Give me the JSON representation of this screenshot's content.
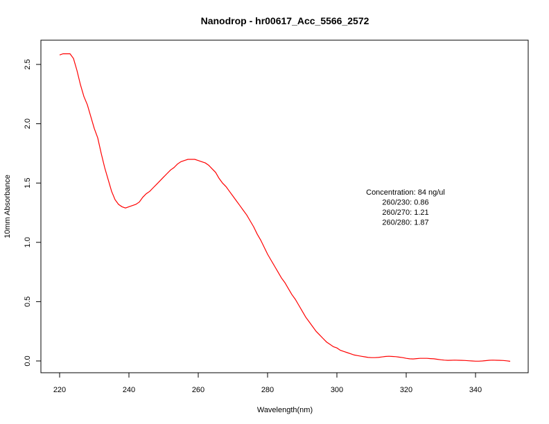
{
  "chart_data": {
    "type": "line",
    "title": "Nanodrop - hr00617_Acc_5566_2572",
    "xlabel": "Wavelength(nm)",
    "ylabel": "10mm Absorbance",
    "xlim": [
      220,
      350
    ],
    "ylim": [
      0.0,
      2.6
    ],
    "x_ticks": [
      "220",
      "240",
      "260",
      "280",
      "300",
      "320",
      "340"
    ],
    "y_ticks": [
      "0.0",
      "0.5",
      "1.0",
      "1.5",
      "2.0",
      "2.5"
    ],
    "grid": false,
    "line_color": "#ff0000",
    "annotations": [
      "Concentration: 84 ng/ul",
      "260/230: 0.86",
      "260/270: 1.21",
      "260/280: 1.87"
    ],
    "series": [
      {
        "x": [
          220,
          221,
          222,
          223,
          224,
          225,
          226,
          227,
          228,
          229,
          230,
          231,
          232,
          233,
          234,
          235,
          236,
          237,
          238,
          239,
          240,
          241,
          242,
          243,
          244,
          245,
          246,
          247,
          248,
          249,
          250,
          251,
          252,
          253,
          254,
          255,
          256,
          257,
          258,
          259,
          260,
          261,
          262,
          263,
          264,
          265,
          266,
          267,
          268,
          269,
          270,
          271,
          272,
          273,
          274,
          275,
          276,
          277,
          278,
          279,
          280,
          281,
          282,
          283,
          284,
          285,
          286,
          287,
          288,
          289,
          290,
          291,
          292,
          293,
          294,
          295,
          296,
          297,
          298,
          299,
          300,
          301,
          302,
          303,
          304,
          305,
          306,
          307,
          308,
          309,
          310,
          311,
          312,
          313,
          314,
          315,
          316,
          317,
          318,
          319,
          320,
          321,
          322,
          323,
          324,
          325,
          326,
          327,
          328,
          329,
          330,
          331,
          332,
          333,
          334,
          335,
          336,
          337,
          338,
          339,
          340,
          341,
          342,
          343,
          344,
          345,
          346,
          347,
          348,
          349,
          350
        ],
        "values": [
          2.58,
          2.59,
          2.59,
          2.59,
          2.55,
          2.45,
          2.33,
          2.23,
          2.16,
          2.06,
          1.96,
          1.88,
          1.75,
          1.63,
          1.53,
          1.43,
          1.36,
          1.32,
          1.3,
          1.29,
          1.3,
          1.31,
          1.32,
          1.34,
          1.38,
          1.41,
          1.43,
          1.46,
          1.49,
          1.52,
          1.55,
          1.58,
          1.61,
          1.63,
          1.66,
          1.68,
          1.69,
          1.7,
          1.7,
          1.7,
          1.69,
          1.68,
          1.67,
          1.65,
          1.62,
          1.59,
          1.54,
          1.5,
          1.47,
          1.43,
          1.39,
          1.35,
          1.31,
          1.27,
          1.23,
          1.18,
          1.13,
          1.07,
          1.02,
          0.96,
          0.9,
          0.85,
          0.8,
          0.75,
          0.7,
          0.66,
          0.61,
          0.56,
          0.52,
          0.47,
          0.42,
          0.37,
          0.33,
          0.29,
          0.25,
          0.22,
          0.19,
          0.16,
          0.14,
          0.12,
          0.11,
          0.09,
          0.08,
          0.07,
          0.06,
          0.05,
          0.045,
          0.04,
          0.035,
          0.03,
          0.028,
          0.028,
          0.03,
          0.034,
          0.038,
          0.04,
          0.038,
          0.036,
          0.032,
          0.028,
          0.022,
          0.018,
          0.017,
          0.02,
          0.022,
          0.022,
          0.022,
          0.02,
          0.018,
          0.014,
          0.01,
          0.007,
          0.005,
          0.006,
          0.007,
          0.006,
          0.005,
          0.004,
          0.002,
          0.0,
          -0.002,
          -0.002,
          0.0,
          0.003,
          0.006,
          0.007,
          0.006,
          0.005,
          0.004,
          0.001,
          -0.003
        ]
      }
    ]
  }
}
